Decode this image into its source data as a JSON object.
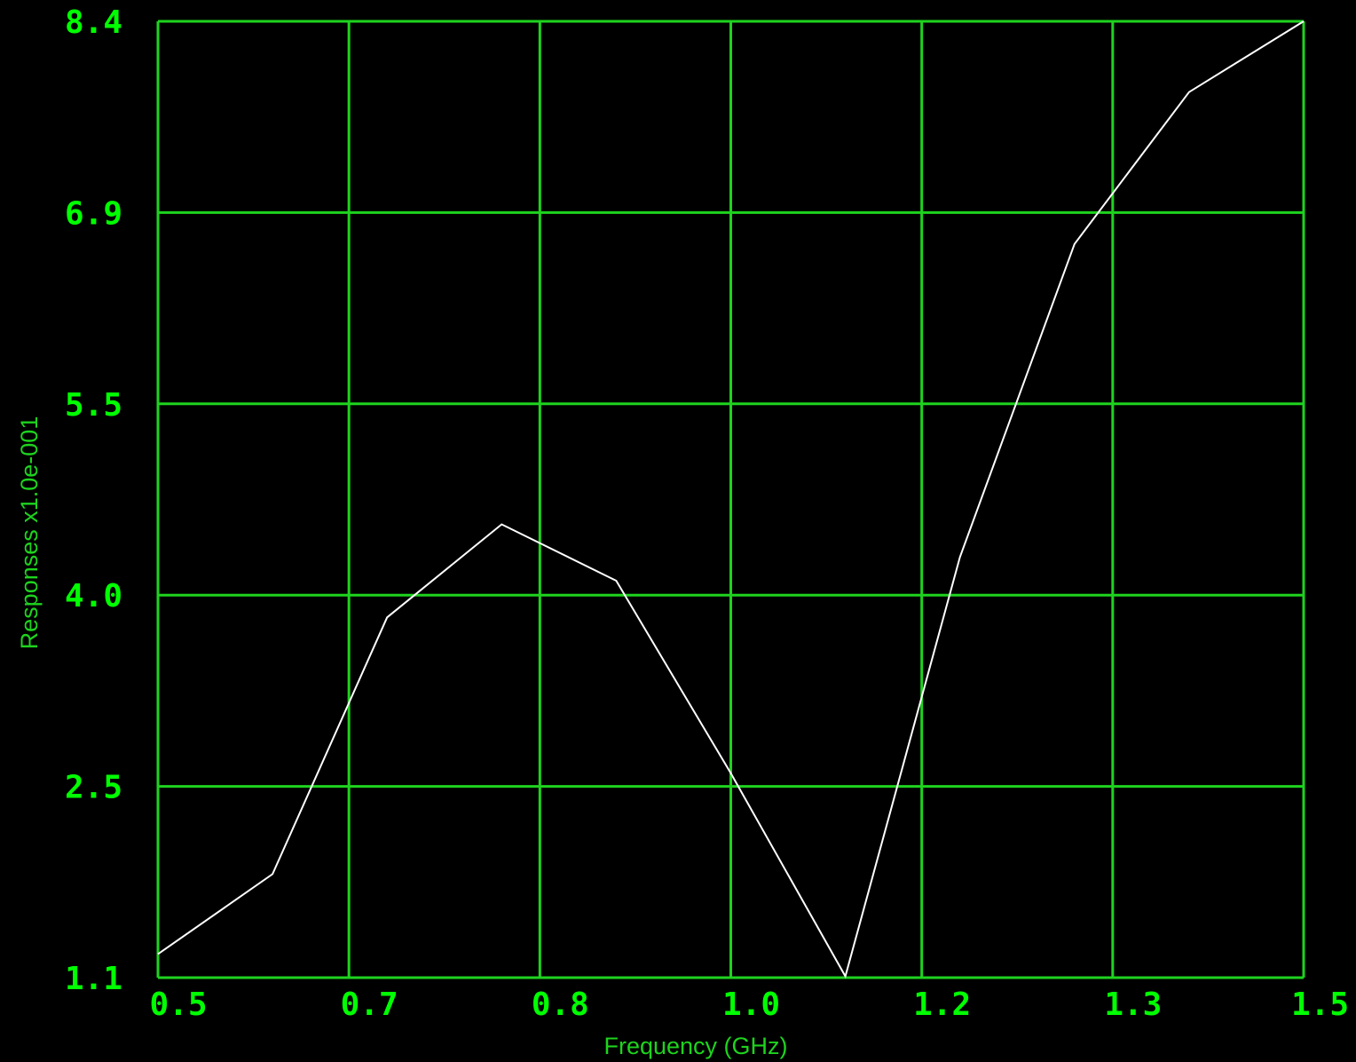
{
  "chart_data": {
    "type": "line",
    "xlabel": "Frequency (GHz)",
    "ylabel": "Responses x1.0e-001",
    "x_tick_labels": [
      "0.5",
      "0.7",
      "0.8",
      "1.0",
      "1.2",
      "1.3",
      "1.5"
    ],
    "y_tick_labels": [
      "1.1",
      "2.5",
      "4.0",
      "5.5",
      "6.9",
      "8.4"
    ],
    "xlim": [
      0.5,
      1.5
    ],
    "ylim": [
      1.1,
      8.4
    ],
    "grid": true,
    "colors": {
      "background": "#000000",
      "grid": "#1ED31E",
      "tick_label": "#00FF00",
      "axis_title": "#1ED31E",
      "series": "#FFFFFF"
    },
    "series": [
      {
        "x": [
          0.5,
          0.6,
          0.7,
          0.8,
          0.9,
          1.0,
          1.1,
          1.2,
          1.3,
          1.4,
          1.5
        ],
        "values": [
          1.28,
          1.89,
          3.85,
          4.56,
          4.13,
          2.66,
          1.11,
          4.31,
          6.7,
          7.86,
          8.4
        ]
      }
    ]
  }
}
